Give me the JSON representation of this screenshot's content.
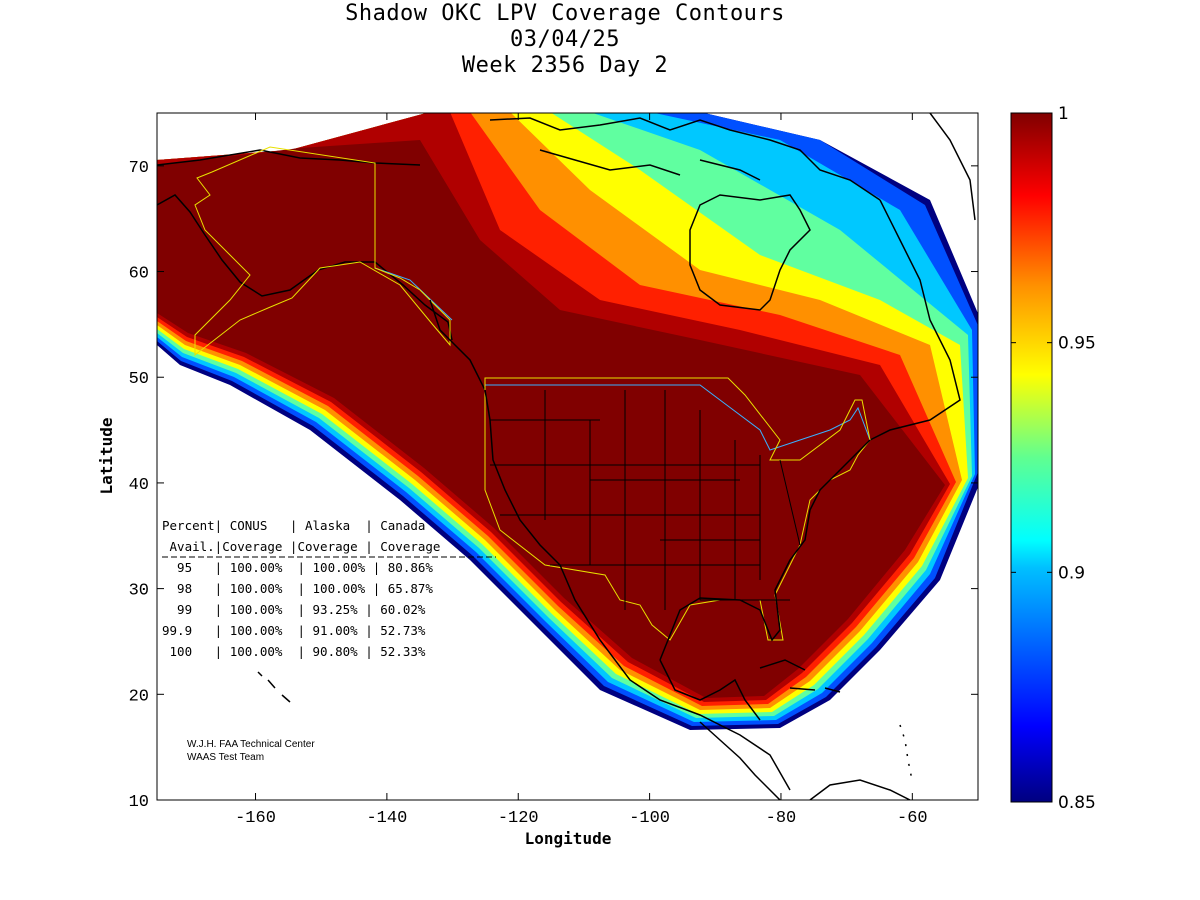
{
  "title": {
    "line1": "Shadow OKC LPV Coverage Contours",
    "line2": "03/04/25",
    "line3": "Week 2356 Day 2"
  },
  "chart_data": {
    "type": "heatmap",
    "title": "Shadow OKC LPV Coverage Contours",
    "xlabel": "Longitude",
    "ylabel": "Latitude",
    "xlim": [
      -175,
      -50
    ],
    "ylim": [
      10,
      75
    ],
    "x_ticks": [
      -160,
      -140,
      -120,
      -100,
      -80,
      -60
    ],
    "y_ticks": [
      10,
      20,
      30,
      40,
      50,
      60,
      70
    ],
    "colorbar": {
      "min": 0.85,
      "max": 1,
      "ticks": [
        0.85,
        0.9,
        0.95,
        1
      ],
      "tick_labels": [
        "0.85",
        "0.9",
        "0.95",
        "1"
      ],
      "colormap": "jet"
    },
    "contour_bands": [
      {
        "level": 1.0,
        "color": "#800000"
      },
      {
        "level": 0.99,
        "color": "#a00000"
      },
      {
        "level": 0.985,
        "color": "#d00000"
      },
      {
        "level": 0.98,
        "color": "#ff2000"
      },
      {
        "level": 0.97,
        "color": "#ff5000"
      },
      {
        "level": 0.965,
        "color": "#ff8000"
      },
      {
        "level": 0.955,
        "color": "#ffb000"
      },
      {
        "level": 0.945,
        "color": "#ffe000"
      },
      {
        "level": 0.935,
        "color": "#c8ff30"
      },
      {
        "level": 0.925,
        "color": "#a0ff60"
      },
      {
        "level": 0.915,
        "color": "#60ffa0"
      },
      {
        "level": 0.905,
        "color": "#20e0e0"
      },
      {
        "level": 0.895,
        "color": "#00b0ff"
      },
      {
        "level": 0.885,
        "color": "#0080ff"
      },
      {
        "level": 0.87,
        "color": "#0030ff"
      },
      {
        "level": 0.855,
        "color": "#0000a0"
      }
    ]
  },
  "stats_table": {
    "header1": "Percent| CONUS   | Alaska  | Canada",
    "header2": " Avail.|Coverage |Coverage | Coverage",
    "rows": [
      "  95   | 100.00%  | 100.00% | 80.86%",
      "  98   | 100.00%  | 100.00% | 65.87%",
      "  99   | 100.00%  | 93.25% | 60.02%",
      "99.9   | 100.00%  | 91.00% | 52.73%",
      " 100   | 100.00%  | 90.80% | 52.33%"
    ]
  },
  "credits": {
    "line1": "W.J.H. FAA Technical Center",
    "line2": "WAAS Test Team"
  }
}
